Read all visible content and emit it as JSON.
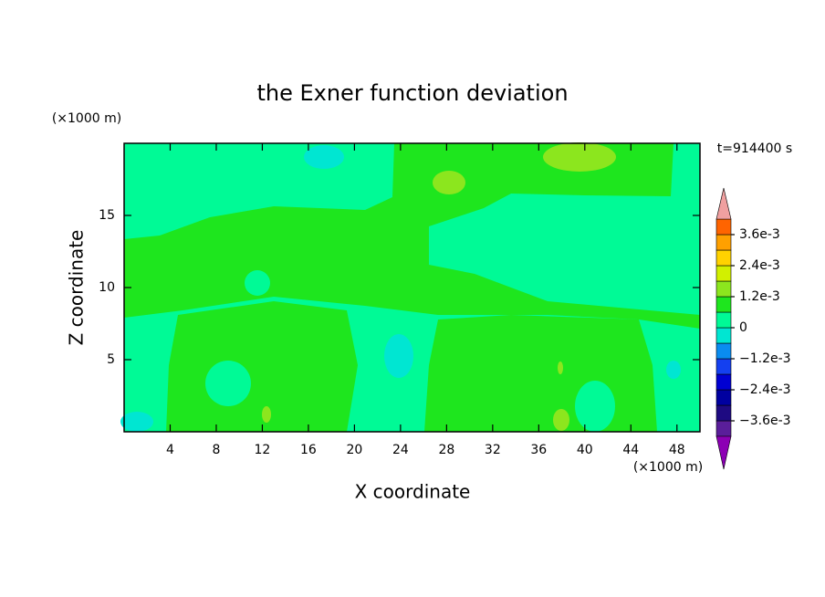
{
  "chart_data": {
    "type": "contour",
    "title": "the Exner function deviation",
    "x_label": "X coordinate",
    "y_label": "Z coordinate",
    "x_unit": "(×1000 m)",
    "y_unit": "(×1000 m)",
    "time_label": "t=914400 s",
    "xlim": [
      0,
      50
    ],
    "ylim": [
      0,
      20
    ],
    "xticks": [
      4,
      8,
      12,
      16,
      20,
      24,
      28,
      32,
      36,
      40,
      44,
      48
    ],
    "yticks": [
      5,
      10,
      15
    ],
    "colorbar": {
      "levels": [
        -0.0042,
        -0.0036,
        -0.003,
        -0.0024,
        -0.0018,
        -0.0012,
        -0.0006,
        0,
        0.0006,
        0.0012,
        0.0018,
        0.0024,
        0.003,
        0.0036,
        0.0042
      ],
      "colors": [
        "#5a1e9a",
        "#1e0a82",
        "#0000a0",
        "#0000d2",
        "#1440f0",
        "#0a8cf0",
        "#00e6d2",
        "#00fa96",
        "#1ee61e",
        "#8ce61e",
        "#d2f000",
        "#ffd200",
        "#ffa000",
        "#ff6400"
      ],
      "under_color": "#8c00b4",
      "over_color": "#f0a0a0",
      "ticks": [
        {
          "value": 0.0036,
          "label": "3.6e-3"
        },
        {
          "value": 0.0024,
          "label": "2.4e-3"
        },
        {
          "value": 0.0012,
          "label": "1.2e-3"
        },
        0,
        {
          "value": -0.0012,
          "label": "−1.2e-3"
        },
        {
          "value": -0.0024,
          "label": "−2.4e-3"
        },
        {
          "value": -0.0036,
          "label": "−3.6e-3"
        }
      ]
    }
  }
}
